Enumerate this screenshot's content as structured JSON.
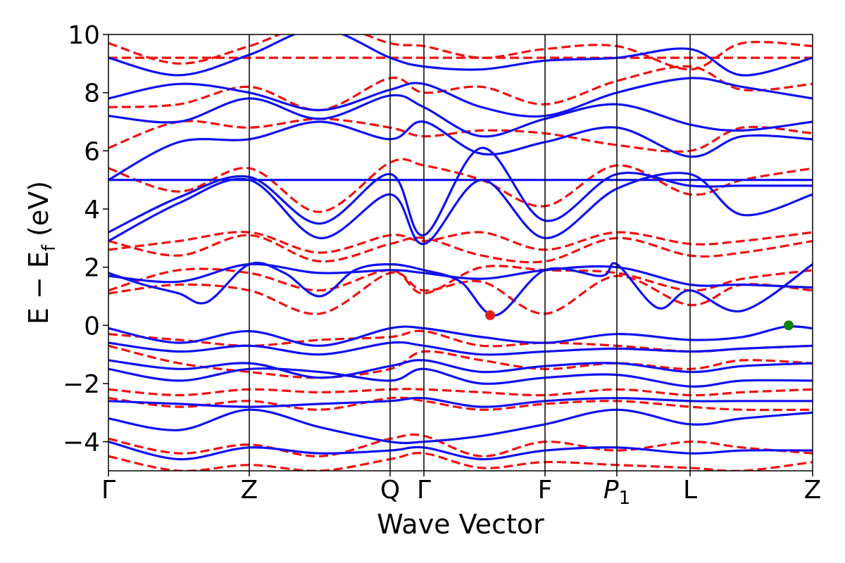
{
  "chart_data": {
    "type": "line",
    "xlabel": "Wave Vector",
    "ylabel": "E − E_f (eV)",
    "ylabel_parts": {
      "a": "E  −  E",
      "sub": "f",
      "b": " (eV)"
    },
    "ylim": [
      -5,
      10
    ],
    "xlim": [
      0,
      10
    ],
    "yticks": [
      -4,
      -2,
      0,
      2,
      4,
      6,
      8,
      10
    ],
    "ytick_labels": [
      "−4",
      "−2",
      "0",
      "2",
      "4",
      "6",
      "8",
      "10"
    ],
    "kpoints": [
      {
        "x": 0.0,
        "label": "Γ",
        "sub": ""
      },
      {
        "x": 2.0,
        "label": "Z",
        "sub": ""
      },
      {
        "x": 4.0,
        "label": "Q",
        "sub": ""
      },
      {
        "x": 4.48,
        "label": "Γ",
        "sub": ""
      },
      {
        "x": 6.2,
        "label": "F",
        "sub": ""
      },
      {
        "x": 7.22,
        "label": "P",
        "sub": "1"
      },
      {
        "x": 8.26,
        "label": "L",
        "sub": ""
      },
      {
        "x": 10.0,
        "label": "Z",
        "sub": ""
      }
    ],
    "grid": false,
    "legend": "none",
    "colors": {
      "spin_up": "#1010f0",
      "spin_down": "#f01010",
      "cbm_marker": "#e02020",
      "vbm_marker": "#108010"
    },
    "series": [
      {
        "style": "solid",
        "color": "#1010f0",
        "x": [
          0,
          1.0,
          2.0,
          3.0,
          4.0,
          4.48,
          5.3,
          6.2,
          7.22,
          8.26,
          9.0,
          9.6,
          10.0
        ],
        "y": [
          -0.1,
          -0.6,
          -0.2,
          -0.7,
          -0.1,
          -0.1,
          -0.4,
          -0.6,
          -0.3,
          -0.5,
          -0.4,
          -0.05,
          -0.1
        ]
      },
      {
        "style": "solid",
        "color": "#1010f0",
        "x": [
          0,
          1.0,
          2.0,
          3.0,
          4.0,
          4.48,
          5.3,
          6.2,
          7.22,
          8.26,
          9.0,
          10.0
        ],
        "y": [
          -0.6,
          -0.9,
          -0.7,
          -1.0,
          -0.6,
          -0.7,
          -1.0,
          -0.9,
          -0.8,
          -0.9,
          -0.8,
          -0.7
        ]
      },
      {
        "style": "solid",
        "color": "#1010f0",
        "x": [
          0,
          1.0,
          2.0,
          3.0,
          4.0,
          4.48,
          5.3,
          6.2,
          7.22,
          8.26,
          9.0,
          10.0
        ],
        "y": [
          -1.2,
          -1.5,
          -1.3,
          -1.8,
          -1.4,
          -1.2,
          -1.6,
          -1.4,
          -1.3,
          -1.6,
          -1.4,
          -1.3
        ]
      },
      {
        "style": "solid",
        "color": "#1010f0",
        "x": [
          0,
          1.0,
          2.0,
          3.0,
          4.0,
          4.48,
          5.3,
          6.2,
          7.22,
          8.26,
          9.0,
          10.0
        ],
        "y": [
          -1.5,
          -1.9,
          -1.5,
          -1.6,
          -1.9,
          -1.5,
          -2.0,
          -1.8,
          -1.7,
          -2.1,
          -1.9,
          -1.9
        ]
      },
      {
        "style": "solid",
        "color": "#1010f0",
        "x": [
          0,
          1.0,
          2.0,
          3.0,
          4.0,
          4.48,
          5.3,
          6.2,
          7.22,
          8.26,
          9.0,
          10.0
        ],
        "y": [
          -2.6,
          -2.7,
          -2.8,
          -2.7,
          -2.6,
          -2.5,
          -2.8,
          -2.6,
          -2.5,
          -2.6,
          -2.6,
          -2.6
        ]
      },
      {
        "style": "solid",
        "color": "#1010f0",
        "x": [
          0,
          1.0,
          2.0,
          3.0,
          4.0,
          4.48,
          5.3,
          6.2,
          7.22,
          8.26,
          9.0,
          10.0
        ],
        "y": [
          -3.2,
          -3.6,
          -2.9,
          -3.5,
          -4.0,
          -4.0,
          -3.8,
          -3.4,
          -2.9,
          -3.4,
          -3.2,
          -3.0
        ]
      },
      {
        "style": "solid",
        "color": "#1010f0",
        "x": [
          0,
          1.0,
          2.0,
          3.0,
          4.0,
          4.48,
          5.3,
          6.2,
          7.22,
          8.26,
          9.0,
          10.0
        ],
        "y": [
          -4.0,
          -4.6,
          -4.2,
          -4.4,
          -4.3,
          -4.2,
          -4.6,
          -4.3,
          -4.2,
          -4.4,
          -4.3,
          -4.3
        ]
      },
      {
        "style": "solid",
        "color": "#1010f0",
        "x": [
          0,
          0.5,
          1.0,
          1.4,
          2.0,
          2.5,
          3.0,
          3.5,
          4.0,
          4.48,
          5.0,
          5.5,
          6.2,
          7.0,
          7.22,
          7.8,
          8.26,
          9.0,
          10.0
        ],
        "y": [
          1.8,
          1.4,
          1.1,
          0.8,
          2.1,
          1.8,
          1.0,
          1.9,
          2.1,
          1.9,
          1.5,
          0.35,
          1.9,
          1.7,
          2.1,
          0.6,
          1.2,
          0.5,
          2.1
        ]
      },
      {
        "style": "solid",
        "color": "#1010f0",
        "x": [
          0,
          1.0,
          2.0,
          3.0,
          4.0,
          4.48,
          5.3,
          6.2,
          7.22,
          8.26,
          9.0,
          10.0
        ],
        "y": [
          1.7,
          1.5,
          2.1,
          1.8,
          1.9,
          1.8,
          1.6,
          1.9,
          2.0,
          1.4,
          1.4,
          1.3
        ]
      },
      {
        "style": "solid",
        "color": "#1010f0",
        "x": [
          0,
          1.0,
          2.0,
          3.0,
          4.0,
          4.48,
          5.3,
          6.2,
          7.22,
          8.26,
          9.0,
          10.0
        ],
        "y": [
          2.9,
          4.2,
          5.0,
          3.0,
          4.5,
          2.8,
          5.0,
          3.0,
          4.7,
          5.2,
          3.8,
          4.5
        ]
      },
      {
        "style": "solid",
        "color": "#1010f0",
        "x": [
          0,
          10.0
        ],
        "y": [
          5.0,
          5.0
        ]
      },
      {
        "style": "solid",
        "color": "#1010f0",
        "x": [
          0,
          1.0,
          2.0,
          3.0,
          4.0,
          4.48,
          5.3,
          6.2,
          7.22,
          8.26,
          9.0,
          10.0
        ],
        "y": [
          3.2,
          4.4,
          5.1,
          3.5,
          5.2,
          3.1,
          6.1,
          3.6,
          5.2,
          4.8,
          4.8,
          4.8
        ]
      },
      {
        "style": "solid",
        "color": "#1010f0",
        "x": [
          0,
          1.0,
          2.0,
          3.0,
          4.0,
          4.48,
          5.3,
          6.2,
          7.22,
          8.26,
          9.0,
          10.0
        ],
        "y": [
          5.0,
          6.3,
          6.4,
          7.0,
          6.4,
          7.0,
          5.9,
          6.3,
          6.8,
          5.8,
          6.5,
          6.4
        ]
      },
      {
        "style": "solid",
        "color": "#1010f0",
        "x": [
          0,
          1.0,
          2.0,
          3.0,
          4.0,
          4.48,
          5.3,
          6.2,
          7.22,
          8.26,
          9.0,
          10.0
        ],
        "y": [
          7.2,
          7.0,
          7.8,
          7.1,
          7.9,
          7.5,
          6.5,
          7.1,
          7.6,
          6.9,
          6.7,
          7.0
        ]
      },
      {
        "style": "solid",
        "color": "#1010f0",
        "x": [
          0,
          1.0,
          2.0,
          3.0,
          4.0,
          4.48,
          5.3,
          6.2,
          7.22,
          8.26,
          9.0,
          10.0
        ],
        "y": [
          7.8,
          8.3,
          8.0,
          7.4,
          8.1,
          8.3,
          7.5,
          7.2,
          8.0,
          8.5,
          8.2,
          7.8
        ]
      },
      {
        "style": "solid",
        "color": "#1010f0",
        "x": [
          0,
          1.0,
          2.0,
          3.0,
          4.0,
          4.48,
          5.3,
          6.2,
          7.22,
          8.26,
          9.0,
          10.0
        ],
        "y": [
          9.2,
          8.6,
          9.3,
          10.2,
          9.2,
          8.9,
          8.8,
          9.1,
          9.2,
          9.5,
          8.6,
          9.2
        ]
      },
      {
        "style": "dashed",
        "color": "#f01010",
        "x": [
          0,
          1.0,
          2.0,
          3.0,
          4.0,
          4.48,
          5.3,
          6.2,
          7.22,
          8.26,
          9.0,
          10.0
        ],
        "y": [
          1.1,
          1.4,
          1.2,
          0.4,
          1.8,
          1.2,
          1.5,
          0.4,
          1.7,
          0.7,
          1.4,
          1.2
        ]
      },
      {
        "style": "dashed",
        "color": "#f01010",
        "x": [
          0,
          1.0,
          2.0,
          3.0,
          4.0,
          4.48,
          5.3,
          6.2,
          7.22,
          8.26,
          9.0,
          10.0
        ],
        "y": [
          1.2,
          1.9,
          1.8,
          1.2,
          1.9,
          1.1,
          2.0,
          1.9,
          1.8,
          1.2,
          1.6,
          1.9
        ]
      },
      {
        "style": "dashed",
        "color": "#f01010",
        "x": [
          0,
          1.0,
          2.0,
          3.0,
          4.0,
          4.48,
          5.3,
          6.2,
          7.22,
          8.26,
          9.0,
          10.0
        ],
        "y": [
          2.6,
          2.9,
          3.2,
          2.5,
          3.1,
          2.9,
          3.2,
          2.6,
          3.2,
          2.8,
          2.9,
          3.2
        ]
      },
      {
        "style": "dashed",
        "color": "#f01010",
        "x": [
          0,
          1.0,
          2.0,
          3.0,
          4.0,
          4.48,
          5.3,
          6.2,
          7.22,
          8.26,
          9.0,
          10.0
        ],
        "y": [
          2.9,
          2.4,
          3.1,
          2.2,
          2.8,
          3.0,
          2.4,
          2.2,
          3.0,
          2.4,
          2.5,
          2.9
        ]
      },
      {
        "style": "dashed",
        "color": "#f01010",
        "x": [
          0,
          1.0,
          2.0,
          3.0,
          4.0,
          4.48,
          5.3,
          6.2,
          7.22,
          8.26,
          9.0,
          10.0
        ],
        "y": [
          5.4,
          4.6,
          5.4,
          3.9,
          5.6,
          5.5,
          5.0,
          4.1,
          5.5,
          4.5,
          5.0,
          5.4
        ]
      },
      {
        "style": "dashed",
        "color": "#f01010",
        "x": [
          0,
          1.0,
          2.0,
          3.0,
          4.0,
          4.48,
          5.3,
          6.2,
          7.22,
          8.26,
          9.0,
          10.0
        ],
        "y": [
          6.1,
          7.0,
          6.8,
          7.1,
          6.8,
          6.5,
          6.7,
          6.6,
          6.2,
          6.0,
          6.8,
          6.6
        ]
      },
      {
        "style": "dashed",
        "color": "#f01010",
        "x": [
          0,
          1.0,
          2.0,
          3.0,
          4.0,
          4.48,
          5.3,
          6.2,
          7.22,
          8.26,
          9.0,
          10.0
        ],
        "y": [
          7.5,
          7.6,
          8.2,
          7.4,
          8.5,
          8.0,
          8.2,
          7.6,
          8.4,
          8.9,
          8.1,
          8.3
        ]
      },
      {
        "style": "dashed",
        "color": "#f01010",
        "x": [
          0,
          10.0
        ],
        "y": [
          9.2,
          9.2
        ]
      },
      {
        "style": "dashed",
        "color": "#f01010",
        "x": [
          0,
          1.0,
          2.0,
          3.0,
          4.0,
          4.48,
          5.3,
          6.2,
          7.22,
          8.26,
          9.0,
          10.0
        ],
        "y": [
          9.7,
          9.0,
          9.6,
          10.4,
          9.7,
          9.6,
          9.2,
          9.5,
          9.6,
          8.8,
          9.7,
          9.6
        ]
      },
      {
        "style": "dashed",
        "color": "#f01010",
        "x": [
          0,
          1.0,
          2.0,
          3.0,
          4.0,
          4.48,
          5.3,
          6.2,
          7.22,
          8.26,
          9.0,
          10.0
        ],
        "y": [
          -0.3,
          -0.5,
          -0.7,
          -0.5,
          -0.4,
          -0.2,
          -0.7,
          -0.6,
          -0.7,
          -0.9,
          -0.8,
          -0.7
        ]
      },
      {
        "style": "dashed",
        "color": "#f01010",
        "x": [
          0,
          1.0,
          2.0,
          3.0,
          4.0,
          4.48,
          5.3,
          6.2,
          7.22,
          8.26,
          9.0,
          10.0
        ],
        "y": [
          -0.7,
          -1.3,
          -1.6,
          -1.8,
          -1.5,
          -0.9,
          -1.2,
          -1.5,
          -1.3,
          -1.5,
          -1.2,
          -1.3
        ]
      },
      {
        "style": "dashed",
        "color": "#f01010",
        "x": [
          0,
          1.0,
          2.0,
          3.0,
          4.0,
          4.48,
          5.3,
          6.2,
          7.22,
          8.26,
          9.0,
          10.0
        ],
        "y": [
          -2.2,
          -2.4,
          -2.2,
          -2.3,
          -2.2,
          -2.2,
          -2.3,
          -2.4,
          -2.2,
          -2.4,
          -2.3,
          -2.2
        ]
      },
      {
        "style": "dashed",
        "color": "#f01010",
        "x": [
          0,
          1.0,
          2.0,
          3.0,
          4.0,
          4.48,
          5.3,
          6.2,
          7.22,
          8.26,
          9.0,
          10.0
        ],
        "y": [
          -2.5,
          -2.8,
          -2.6,
          -2.9,
          -2.5,
          -2.6,
          -2.9,
          -2.7,
          -2.6,
          -2.8,
          -2.9,
          -2.9
        ]
      },
      {
        "style": "dashed",
        "color": "#f01010",
        "x": [
          0,
          1.0,
          2.0,
          3.0,
          4.0,
          4.48,
          5.3,
          6.2,
          7.22,
          8.26,
          9.0,
          10.0
        ],
        "y": [
          -3.9,
          -4.4,
          -4.1,
          -4.5,
          -3.9,
          -3.8,
          -4.5,
          -4.0,
          -4.3,
          -4.0,
          -4.2,
          -4.4
        ]
      },
      {
        "style": "dashed",
        "color": "#f01010",
        "x": [
          0,
          1.0,
          2.0,
          3.0,
          4.0,
          4.48,
          5.3,
          6.2,
          7.22,
          8.26,
          9.0,
          10.0
        ],
        "y": [
          -4.5,
          -5.0,
          -4.8,
          -5.0,
          -4.6,
          -4.4,
          -4.9,
          -4.7,
          -4.8,
          -4.9,
          -5.0,
          -4.7
        ]
      }
    ],
    "markers": [
      {
        "x": 5.42,
        "y": 0.35,
        "color": "#e02020",
        "radius": 7
      },
      {
        "x": 9.66,
        "y": 0.0,
        "color": "#108010",
        "radius": 7
      }
    ]
  }
}
